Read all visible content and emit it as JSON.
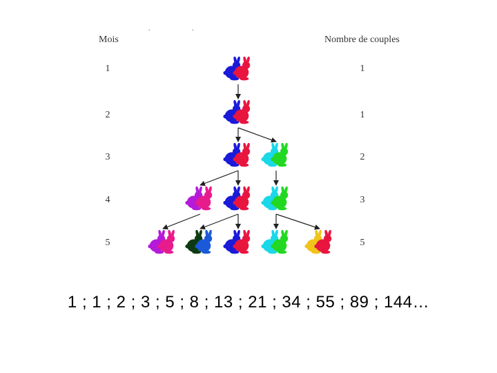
{
  "headers": {
    "months": "Mois",
    "pairs": "Nombre de couples"
  },
  "rows": [
    {
      "month": "1",
      "pairs": "1"
    },
    {
      "month": "2",
      "pairs": "1"
    },
    {
      "month": "3",
      "pairs": "2"
    },
    {
      "month": "4",
      "pairs": "3"
    },
    {
      "month": "5",
      "pairs": "5"
    }
  ],
  "sequence": "1 ; 1 ; 2 ; 3 ; 5 ; 8 ; 13 ; 21 ; 34 ; 55 ; 89 ; 144…",
  "rabbit_pairs": [
    {
      "row": 0,
      "slot": 2,
      "colors": [
        "#1a1ad8",
        "#e8153f"
      ]
    },
    {
      "row": 1,
      "slot": 2,
      "colors": [
        "#1a1ad8",
        "#e8153f"
      ]
    },
    {
      "row": 2,
      "slot": 2,
      "colors": [
        "#1a1ad8",
        "#e8153f"
      ]
    },
    {
      "row": 2,
      "slot": 3,
      "colors": [
        "#19d8e8",
        "#22d822"
      ]
    },
    {
      "row": 3,
      "slot": 1,
      "colors": [
        "#b41ad8",
        "#e81b8c"
      ]
    },
    {
      "row": 3,
      "slot": 2,
      "colors": [
        "#1a1ad8",
        "#e8153f"
      ]
    },
    {
      "row": 3,
      "slot": 3,
      "colors": [
        "#19d8e8",
        "#22d822"
      ]
    },
    {
      "row": 4,
      "slot": 0,
      "colors": [
        "#b41ad8",
        "#e81b8c"
      ]
    },
    {
      "row": 4,
      "slot": 1,
      "colors": [
        "#0d3a12",
        "#1a5ad8"
      ]
    },
    {
      "row": 4,
      "slot": 2,
      "colors": [
        "#1a1ad8",
        "#e8153f"
      ]
    },
    {
      "row": 4,
      "slot": 3,
      "colors": [
        "#19d8e8",
        "#22d822"
      ]
    },
    {
      "row": 4,
      "slot": 4,
      "colors": [
        "#f0c41a",
        "#e8153f"
      ]
    }
  ],
  "arrows": [
    {
      "from": [
        0,
        2
      ],
      "to": [
        1,
        2
      ]
    },
    {
      "from": [
        1,
        2
      ],
      "to": [
        2,
        2
      ]
    },
    {
      "from": [
        1,
        2
      ],
      "to": [
        2,
        3
      ]
    },
    {
      "from": [
        2,
        2
      ],
      "to": [
        3,
        1
      ]
    },
    {
      "from": [
        2,
        2
      ],
      "to": [
        3,
        2
      ]
    },
    {
      "from": [
        2,
        3
      ],
      "to": [
        3,
        3
      ]
    },
    {
      "from": [
        3,
        1
      ],
      "to": [
        4,
        0
      ]
    },
    {
      "from": [
        3,
        2
      ],
      "to": [
        4,
        1
      ]
    },
    {
      "from": [
        3,
        2
      ],
      "to": [
        4,
        2
      ]
    },
    {
      "from": [
        3,
        3
      ],
      "to": [
        4,
        3
      ]
    },
    {
      "from": [
        3,
        3
      ],
      "to": [
        4,
        4
      ]
    }
  ]
}
